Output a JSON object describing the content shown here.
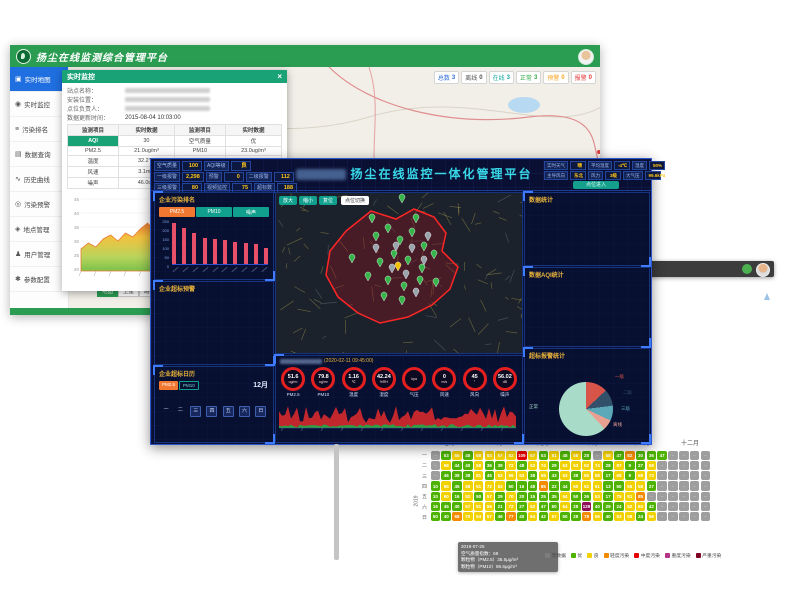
{
  "green_window": {
    "title": "扬尘在线监测综合管理平台",
    "sidebar": [
      {
        "label": "实时地图",
        "icon": "map-icon",
        "active": true
      },
      {
        "label": "实时监控",
        "icon": "monitor-icon"
      },
      {
        "label": "污染排名",
        "icon": "ranking-icon"
      },
      {
        "label": "数据查询",
        "icon": "table-icon"
      },
      {
        "label": "历史曲线",
        "icon": "chart-icon"
      },
      {
        "label": "污染预警",
        "icon": "alert-icon"
      },
      {
        "label": "地点管理",
        "icon": "location-icon"
      },
      {
        "label": "用户管理",
        "icon": "user-icon"
      },
      {
        "label": "参数配置",
        "icon": "settings-icon"
      }
    ],
    "badges": [
      {
        "label": "总数",
        "value": "3",
        "color": "#2b6cd4"
      },
      {
        "label": "离线",
        "value": "0",
        "color": "#555555"
      },
      {
        "label": "在线",
        "value": "3",
        "color": "#18a6a0"
      },
      {
        "label": "正常",
        "value": "3",
        "color": "#33a848"
      },
      {
        "label": "预警",
        "value": "0",
        "color": "#f5a623"
      },
      {
        "label": "报警",
        "value": "0",
        "color": "#e03a3a"
      }
    ],
    "map_buttons": [
      "地图",
      "卫星",
      "路况",
      "热力"
    ],
    "marker_legend": [
      {
        "label": "离线",
        "color": "#3a3a3a"
      },
      {
        "label": "正常",
        "color": "#2fae4a"
      },
      {
        "label": "预警",
        "color": "#f2c200"
      },
      {
        "label": "超标",
        "color": "#e03030"
      }
    ],
    "popup": {
      "title": "实时监控",
      "close": "×",
      "fields": [
        {
          "label": "站点名称：",
          "redacted": true
        },
        {
          "label": "安装位置：",
          "redacted": true
        },
        {
          "label": "点位负责人：",
          "redacted": true
        },
        {
          "label": "数据更新时间：",
          "value": "2015-08-04 10:03:00"
        }
      ],
      "table": {
        "headers": [
          "监测项目",
          "实时数据",
          "监测项目",
          "实时数据"
        ],
        "rows": [
          [
            "AQI",
            "30",
            "空气质量",
            "优"
          ],
          [
            "PM2.5",
            "21.0ug/m³",
            "PM10",
            "23.0ug/m³"
          ],
          [
            "温度",
            "32.2℃",
            "湿度",
            "66.0%"
          ],
          [
            "风速",
            "3.1m/s",
            "风向",
            "东北"
          ],
          [
            "噪声",
            "46.0dB",
            "",
            ""
          ]
        ]
      },
      "trend_chart": {
        "type": "area",
        "y_ticks": [
          "45",
          "40",
          "35",
          "30",
          "25",
          "20"
        ],
        "peak_label": "44"
      }
    }
  },
  "dashboard": {
    "title": "扬尘在线监控一体化管理平台",
    "stats_left": {
      "row1": [
        {
          "label": "空气质量",
          "value": "100"
        },
        {
          "label": "AQI等级",
          "value": "良"
        }
      ],
      "row2": [
        {
          "label": "一级报警",
          "value": "2,298"
        },
        {
          "label": "预警",
          "value": "0"
        },
        {
          "label": "二级报警",
          "value": "112"
        }
      ],
      "row3": [
        {
          "label": "三级报警",
          "value": "80"
        },
        {
          "label": "视频监控",
          "value": "75"
        },
        {
          "label": "超标数",
          "value": "188"
        }
      ]
    },
    "stats_right": {
      "row1": [
        {
          "label": "实时天气",
          "value": "晴"
        },
        {
          "label": "平均温度",
          "value": "-4℃"
        },
        {
          "label": "湿度",
          "value": "50%"
        }
      ],
      "row2": [
        {
          "label": "主导风向",
          "value": "东北"
        },
        {
          "label": "风力",
          "value": "3级"
        },
        {
          "label": "大气压",
          "value": "99.6kPa"
        }
      ],
      "enter_button": "点位进入"
    },
    "map_controls": [
      "放大",
      "缩小",
      "复位"
    ],
    "map_toggle": "点位切换",
    "panels": {
      "rank": {
        "title": "企业污染排名",
        "tabs": [
          {
            "label": "PM2.5",
            "active": true
          },
          {
            "label": "PM10"
          },
          {
            "label": "噪声"
          }
        ],
        "chart_data": {
          "type": "bar",
          "values": [
            232,
            205,
            178,
            150,
            143,
            134,
            127,
            121,
            113,
            92
          ],
          "ylim": [
            0,
            250
          ],
          "y_ticks": [
            250,
            200,
            150,
            100,
            50,
            0
          ],
          "bar_color": "#e8506a"
        }
      },
      "warning": {
        "title": "企业超标预警"
      },
      "calendar": {
        "title": "企业超标日历",
        "tabs": [
          {
            "label": "PM2.5",
            "active": true
          },
          {
            "label": "PM10"
          }
        ],
        "month": "12月",
        "weekdays": [
          "一",
          "二",
          "三",
          "四",
          "五",
          "六",
          "日"
        ]
      },
      "stat1": {
        "title": "数据统计"
      },
      "stat2": {
        "title": "数据AQI统计"
      },
      "pie": {
        "title": "超标报警统计",
        "chart_data": {
          "type": "pie",
          "slices": [
            {
              "label": "正常",
              "value": 62,
              "color": "#a8dcc8"
            },
            {
              "label": "一级",
              "value": 13,
              "color": "#d75449"
            },
            {
              "label": "二级",
              "value": 10,
              "color": "#33506b"
            },
            {
              "label": "三级",
              "value": 9,
              "color": "#5ba8b8"
            },
            {
              "label": "离线",
              "value": 6,
              "color": "#e8a090"
            }
          ]
        }
      }
    },
    "station": {
      "header_time": "(2020-02-11 09:45:00)",
      "gauges": [
        {
          "value": "51.6",
          "unit": "ug/m³",
          "label": "PM2.5"
        },
        {
          "value": "79.8",
          "unit": "ug/m³",
          "label": "PM10"
        },
        {
          "value": "1.16",
          "unit": "℃",
          "label": "温度"
        },
        {
          "value": "42.24",
          "unit": "%RH",
          "label": "湿度"
        },
        {
          "value": "",
          "unit": "kpa",
          "label": "气压"
        },
        {
          "value": "0",
          "unit": "m/s",
          "label": "风速"
        },
        {
          "value": "45",
          "unit": "°",
          "label": "风向"
        },
        {
          "value": "56.02",
          "unit": "dB",
          "label": "噪声"
        }
      ]
    }
  },
  "heatmap": {
    "year": "2019",
    "months": [
      "七月",
      "八月",
      "九月",
      "十月",
      "十一月",
      "十二月"
    ],
    "weekdays": [
      "一",
      "二",
      "三",
      "四",
      "五",
      "六",
      "日"
    ],
    "chart_data": {
      "type": "heatmap",
      "bands": {
        "g": {
          "label": "优",
          "color": "#4db300"
        },
        "y": {
          "label": "良",
          "color": "#f2d100"
        },
        "o": {
          "label": "轻度污染",
          "color": "#f28b00"
        },
        "r": {
          "label": "中度污染",
          "color": "#e60000"
        },
        "p": {
          "label": "重度污染",
          "color": "#8f0f57"
        },
        "n": {
          "label": "无数据",
          "color": "#9e9e9e"
        }
      },
      "rows": [
        "n,53|g,55|y,48|g,58|y,53|y,57|y,52|y,109|r,57|y,53|g,81|y,48|g,58|y,28|g,n,58|y,47|g,82|o,30|g,36|g,47|g,n,n,n,n",
        "n,58|y,44|g,40|g,58|y,36|g,39|g,72|y,48|g,53|y,74|y,29|g,53|y,53|y,52|y,74|y,28|g,97|y,9|g,27|g,58|y,n,n,n,n,n",
        "n,46|g,39|g,38|g,81|y,45|g,52|y,59|y,53|y,38|g,55|y,43|g,53|y,38|g,55|y,58|y,17|g,68|y,9|g,58|y,73|y,n,n,n,n,n",
        "10|g,55|y,45|g,58|y,51|y,72|y,52|y,50|g,16|g,48|g,85|o,22|g,44|g,60|y,52|y,51|y,13|g,50|g,55|y,58|y,27|g,n,n,n,n,n",
        "10|g,60|y,16|g,52|y,50|g,57|y,29|g,70|y,20|g,15|g,25|g,35|g,64|y,50|g,26|g,53|y,17|g,75|y,51|y,85|o,n,n,n,n,n,n",
        "16|g,45|g,40|g,57|y,51|y,56|y,21|g,72|y,27|g,52|y,47|g,50|g,64|y,28|g,129|p,40|g,29|g,24|g,52|y,60|y,42|g,n,n,n,n,n",
        "50|g,40|g,68|o,70|y,54|y,57|y,46|g,77|o,40|g,64|y,42|g,57|y,50|g,28|g,78|o,56|y,40|g,53|y,58|y,24|g,56|y,n,n,n,n,n"
      ]
    },
    "tooltip": {
      "lines": [
        "2019-07-25",
        "空气质量指数：69",
        "颗粒物（PM2.5）35.5μg/m³",
        "颗粒物（PM10）86.6μg/m³"
      ]
    },
    "legend": [
      {
        "label": "无数据",
        "color": "#7d7d7d"
      },
      {
        "label": "优",
        "color": "#4db300"
      },
      {
        "label": "良",
        "color": "#f2d100"
      },
      {
        "label": "轻度污染",
        "color": "#f28b00"
      },
      {
        "label": "中度污染",
        "color": "#e60000"
      },
      {
        "label": "重度污染",
        "color": "#b5338a"
      },
      {
        "label": "严重污染",
        "color": "#7e0023"
      }
    ]
  }
}
